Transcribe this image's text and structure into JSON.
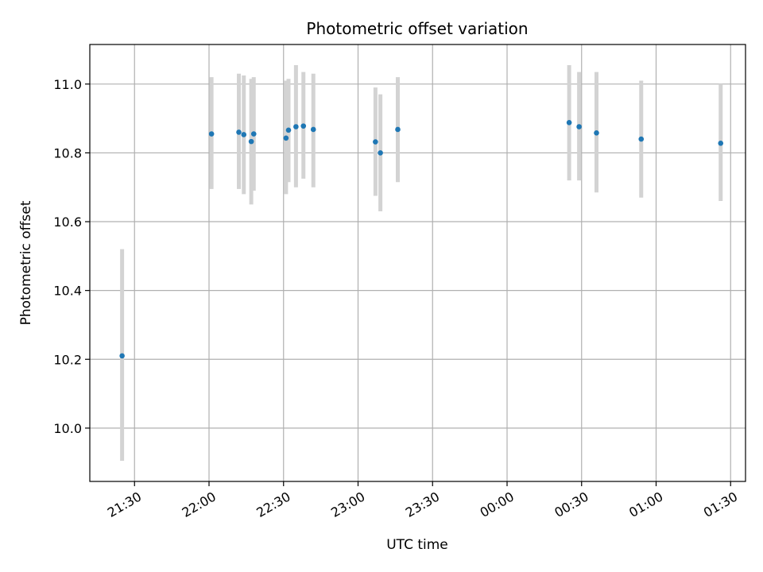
{
  "chart_data": {
    "type": "scatter",
    "title": "Photometric offset variation",
    "xlabel": "UTC time",
    "ylabel": "Photometric offset",
    "x_ticks": [
      "21:30",
      "22:00",
      "22:30",
      "23:00",
      "23:30",
      "00:00",
      "00:30",
      "01:00",
      "01:30"
    ],
    "y_ticks": [
      "10.0",
      "10.2",
      "10.4",
      "10.6",
      "10.8",
      "11.0"
    ],
    "xlim": [
      "21:12",
      "01:36"
    ],
    "ylim": [
      9.845,
      11.115
    ],
    "grid": true,
    "marker_color": "#1f77b4",
    "errorbar_color": "#d3d3d3",
    "points": [
      {
        "t": "21:25",
        "y": 10.21,
        "err_low": 9.905,
        "err_high": 10.52
      },
      {
        "t": "22:01",
        "y": 10.855,
        "err_low": 10.695,
        "err_high": 11.02
      },
      {
        "t": "22:12",
        "y": 10.86,
        "err_low": 10.695,
        "err_high": 11.03
      },
      {
        "t": "22:14",
        "y": 10.853,
        "err_low": 10.68,
        "err_high": 11.025
      },
      {
        "t": "22:17",
        "y": 10.833,
        "err_low": 10.65,
        "err_high": 11.015
      },
      {
        "t": "22:18",
        "y": 10.855,
        "err_low": 10.69,
        "err_high": 11.02
      },
      {
        "t": "22:31",
        "y": 10.843,
        "err_low": 10.68,
        "err_high": 11.01
      },
      {
        "t": "22:32",
        "y": 10.866,
        "err_low": 10.715,
        "err_high": 11.015
      },
      {
        "t": "22:35",
        "y": 10.876,
        "err_low": 10.7,
        "err_high": 11.055
      },
      {
        "t": "22:38",
        "y": 10.878,
        "err_low": 10.725,
        "err_high": 11.035
      },
      {
        "t": "22:42",
        "y": 10.868,
        "err_low": 10.7,
        "err_high": 11.03
      },
      {
        "t": "23:07",
        "y": 10.832,
        "err_low": 10.675,
        "err_high": 10.99
      },
      {
        "t": "23:09",
        "y": 10.8,
        "err_low": 10.63,
        "err_high": 10.97
      },
      {
        "t": "23:16",
        "y": 10.868,
        "err_low": 10.715,
        "err_high": 11.02
      },
      {
        "t": "00:25",
        "y": 10.888,
        "err_low": 10.72,
        "err_high": 11.055
      },
      {
        "t": "00:29",
        "y": 10.876,
        "err_low": 10.72,
        "err_high": 11.035
      },
      {
        "t": "00:36",
        "y": 10.858,
        "err_low": 10.685,
        "err_high": 11.035
      },
      {
        "t": "00:54",
        "y": 10.84,
        "err_low": 10.67,
        "err_high": 11.01
      },
      {
        "t": "01:26",
        "y": 10.828,
        "err_low": 10.66,
        "err_high": 11.0
      }
    ]
  }
}
